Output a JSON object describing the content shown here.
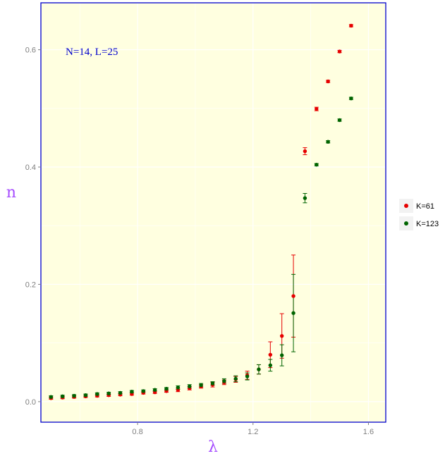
{
  "chart_data": {
    "type": "scatter",
    "xlabel": "λ",
    "ylabel": "n",
    "annotation": "N=14, L=25",
    "xlim": [
      0.465,
      1.66
    ],
    "ylim": [
      -0.035,
      0.68
    ],
    "x_ticks": [
      0.8,
      1.2,
      1.6
    ],
    "x_tick_labels": [
      "0.8",
      "1.2",
      "1.6"
    ],
    "y_ticks": [
      0.0,
      0.2,
      0.4,
      0.6
    ],
    "y_tick_labels": [
      "0.0",
      "0.2",
      "0.4",
      "0.6"
    ],
    "grid": true,
    "legend_position": "right",
    "background_color": "#ffffe0",
    "series": [
      {
        "name": "K=61",
        "color": "#e60000",
        "points": [
          {
            "x": 0.5,
            "y": 0.006,
            "err": 0.002
          },
          {
            "x": 0.54,
            "y": 0.007,
            "err": 0.002
          },
          {
            "x": 0.58,
            "y": 0.008,
            "err": 0.002
          },
          {
            "x": 0.62,
            "y": 0.009,
            "err": 0.002
          },
          {
            "x": 0.66,
            "y": 0.01,
            "err": 0.002
          },
          {
            "x": 0.7,
            "y": 0.011,
            "err": 0.002
          },
          {
            "x": 0.74,
            "y": 0.012,
            "err": 0.002
          },
          {
            "x": 0.78,
            "y": 0.013,
            "err": 0.002
          },
          {
            "x": 0.82,
            "y": 0.015,
            "err": 0.002
          },
          {
            "x": 0.86,
            "y": 0.016,
            "err": 0.002
          },
          {
            "x": 0.9,
            "y": 0.018,
            "err": 0.002
          },
          {
            "x": 0.94,
            "y": 0.02,
            "err": 0.003
          },
          {
            "x": 0.98,
            "y": 0.023,
            "err": 0.003
          },
          {
            "x": 1.02,
            "y": 0.026,
            "err": 0.003
          },
          {
            "x": 1.06,
            "y": 0.029,
            "err": 0.004
          },
          {
            "x": 1.1,
            "y": 0.033,
            "err": 0.004
          },
          {
            "x": 1.14,
            "y": 0.038,
            "err": 0.005
          },
          {
            "x": 1.18,
            "y": 0.045,
            "err": 0.007
          },
          {
            "x": 1.22,
            "y": 0.055,
            "err": 0.008
          },
          {
            "x": 1.26,
            "y": 0.08,
            "err": 0.022
          },
          {
            "x": 1.3,
            "y": 0.112,
            "err": 0.038
          },
          {
            "x": 1.34,
            "y": 0.18,
            "err": 0.07
          },
          {
            "x": 1.38,
            "y": 0.427,
            "err": 0.006
          },
          {
            "x": 1.42,
            "y": 0.499,
            "err": 0.003
          },
          {
            "x": 1.46,
            "y": 0.546,
            "err": 0.002
          },
          {
            "x": 1.5,
            "y": 0.597,
            "err": 0.002
          },
          {
            "x": 1.54,
            "y": 0.641,
            "err": 0.002
          }
        ]
      },
      {
        "name": "K=123",
        "color": "#006400",
        "points": [
          {
            "x": 0.5,
            "y": 0.008,
            "err": 0.002
          },
          {
            "x": 0.54,
            "y": 0.009,
            "err": 0.002
          },
          {
            "x": 0.58,
            "y": 0.01,
            "err": 0.002
          },
          {
            "x": 0.62,
            "y": 0.011,
            "err": 0.002
          },
          {
            "x": 0.66,
            "y": 0.013,
            "err": 0.002
          },
          {
            "x": 0.7,
            "y": 0.014,
            "err": 0.002
          },
          {
            "x": 0.74,
            "y": 0.015,
            "err": 0.002
          },
          {
            "x": 0.78,
            "y": 0.017,
            "err": 0.002
          },
          {
            "x": 0.82,
            "y": 0.018,
            "err": 0.002
          },
          {
            "x": 0.86,
            "y": 0.02,
            "err": 0.002
          },
          {
            "x": 0.9,
            "y": 0.022,
            "err": 0.002
          },
          {
            "x": 0.94,
            "y": 0.024,
            "err": 0.003
          },
          {
            "x": 0.98,
            "y": 0.026,
            "err": 0.003
          },
          {
            "x": 1.02,
            "y": 0.028,
            "err": 0.003
          },
          {
            "x": 1.06,
            "y": 0.031,
            "err": 0.003
          },
          {
            "x": 1.1,
            "y": 0.035,
            "err": 0.004
          },
          {
            "x": 1.14,
            "y": 0.039,
            "err": 0.005
          },
          {
            "x": 1.18,
            "y": 0.043,
            "err": 0.006
          },
          {
            "x": 1.22,
            "y": 0.055,
            "err": 0.008
          },
          {
            "x": 1.26,
            "y": 0.062,
            "err": 0.01
          },
          {
            "x": 1.3,
            "y": 0.079,
            "err": 0.018
          },
          {
            "x": 1.34,
            "y": 0.151,
            "err": 0.066
          },
          {
            "x": 1.38,
            "y": 0.347,
            "err": 0.008
          },
          {
            "x": 1.42,
            "y": 0.404,
            "err": 0.002
          },
          {
            "x": 1.46,
            "y": 0.443,
            "err": 0.002
          },
          {
            "x": 1.5,
            "y": 0.48,
            "err": 0.002
          },
          {
            "x": 1.54,
            "y": 0.517,
            "err": 0.002
          }
        ]
      }
    ]
  }
}
